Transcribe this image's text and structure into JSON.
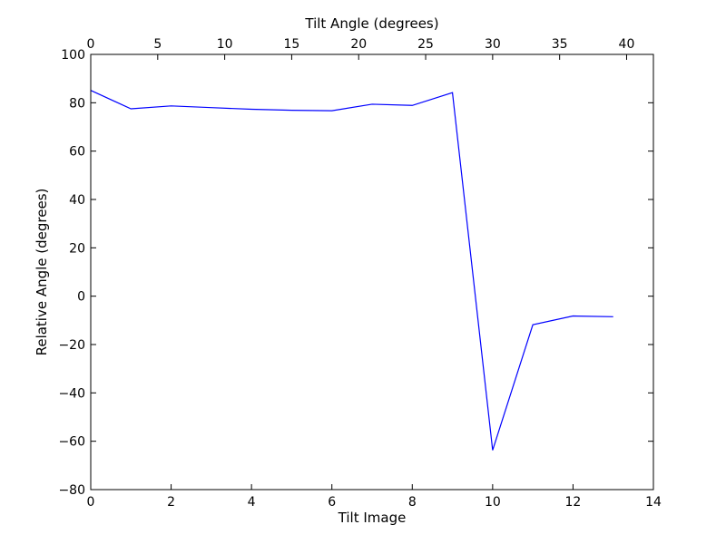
{
  "chart_data": {
    "type": "line",
    "xlabel": "Tilt Image",
    "ylabel": "Relative Angle (degrees)",
    "x2label": "Tilt Angle (degrees)",
    "xlim": [
      0,
      14
    ],
    "ylim": [
      -80,
      100
    ],
    "x2lim": [
      0,
      42
    ],
    "xticks": [
      0,
      2,
      4,
      6,
      8,
      10,
      12,
      14
    ],
    "yticks": [
      -80,
      -60,
      -40,
      -20,
      0,
      20,
      40,
      60,
      80,
      100
    ],
    "x2ticks": [
      0,
      5,
      10,
      15,
      20,
      25,
      30,
      35,
      40
    ],
    "tick_labels": {
      "x": [
        "0",
        "2",
        "4",
        "6",
        "8",
        "10",
        "12",
        "14"
      ],
      "y": [
        "−80",
        "−60",
        "−40",
        "−20",
        "0",
        "20",
        "40",
        "60",
        "80",
        "100"
      ],
      "x2": [
        "0",
        "5",
        "10",
        "15",
        "20",
        "25",
        "30",
        "35",
        "40"
      ]
    },
    "grid": false,
    "line_color": "#0000ff",
    "series": [
      {
        "x": [
          0,
          1,
          2,
          3,
          4,
          5,
          6,
          7,
          8,
          9,
          10,
          11,
          12,
          13
        ],
        "values": [
          85.1,
          77.5,
          78.7,
          78.0,
          77.3,
          76.9,
          76.7,
          79.4,
          78.9,
          84.2,
          -63.7,
          -11.8,
          -8.2,
          -8.5
        ]
      }
    ]
  }
}
